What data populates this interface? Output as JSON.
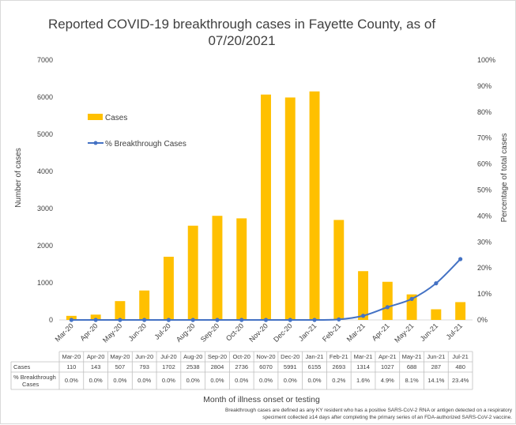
{
  "chart_data": {
    "type": "bar",
    "title_line1": "Reported COVID-19 breakthrough cases in Fayette County, as of",
    "title_line2": "07/20/2021",
    "xlabel": "Month of illness onset or testing",
    "ylabel": "Number of cases",
    "y2label": "Percentage of total cases",
    "ylim": [
      0,
      7000
    ],
    "y2lim": [
      0,
      100
    ],
    "yticks": [
      "0",
      "1000",
      "2000",
      "3000",
      "4000",
      "5000",
      "6000",
      "7000"
    ],
    "y2ticks": [
      "0%",
      "10%",
      "20%",
      "30%",
      "40%",
      "50%",
      "60%",
      "70%",
      "80%",
      "90%",
      "100%"
    ],
    "categories": [
      "Mar-20",
      "Apr-20",
      "May-20",
      "Jun-20",
      "Jul-20",
      "Aug-20",
      "Sep-20",
      "Oct-20",
      "Nov-20",
      "Dec-20",
      "Jan-21",
      "Feb-21",
      "Mar-21",
      "Apr-21",
      "May-21",
      "Jun-21",
      "Jul-21"
    ],
    "series": [
      {
        "name": "Cases",
        "type": "bar",
        "axis": "left",
        "color": "#FFC000",
        "values": [
          110,
          143,
          507,
          793,
          1702,
          2538,
          2804,
          2736,
          6070,
          5991,
          6155,
          2693,
          1314,
          1027,
          688,
          287,
          480
        ]
      },
      {
        "name": "% Breakthrough Cases",
        "type": "line",
        "axis": "right",
        "color": "#4472C4",
        "values": [
          0.0,
          0.0,
          0.0,
          0.0,
          0.0,
          0.0,
          0.0,
          0.0,
          0.0,
          0.0,
          0.0,
          0.2,
          1.6,
          4.9,
          8.1,
          14.1,
          23.4
        ]
      }
    ],
    "legend_placement": "upper-left inside plot",
    "grid": false,
    "table": {
      "row_labels": [
        "Cases",
        "% Breakthrough Cases"
      ],
      "cases": [
        "110",
        "143",
        "507",
        "793",
        "1702",
        "2538",
        "2804",
        "2736",
        "6070",
        "5991",
        "6155",
        "2693",
        "1314",
        "1027",
        "688",
        "287",
        "480"
      ],
      "pct": [
        "0.0%",
        "0.0%",
        "0.0%",
        "0.0%",
        "0.0%",
        "0.0%",
        "0.0%",
        "0.0%",
        "0.0%",
        "0.0%",
        "0.0%",
        "0.2%",
        "1.6%",
        "4.9%",
        "8.1%",
        "14.1%",
        "23.4%"
      ]
    },
    "footnote_line1": "Breakthrough cases are defined as any KY resident who has a positive SARS-CoV-2 RNA or antigen detected on a respiratory",
    "footnote_line2": "speciment collected ≥14 days after completing the primary series of an FDA-authorized SARS-CoV-2 vaccine."
  }
}
